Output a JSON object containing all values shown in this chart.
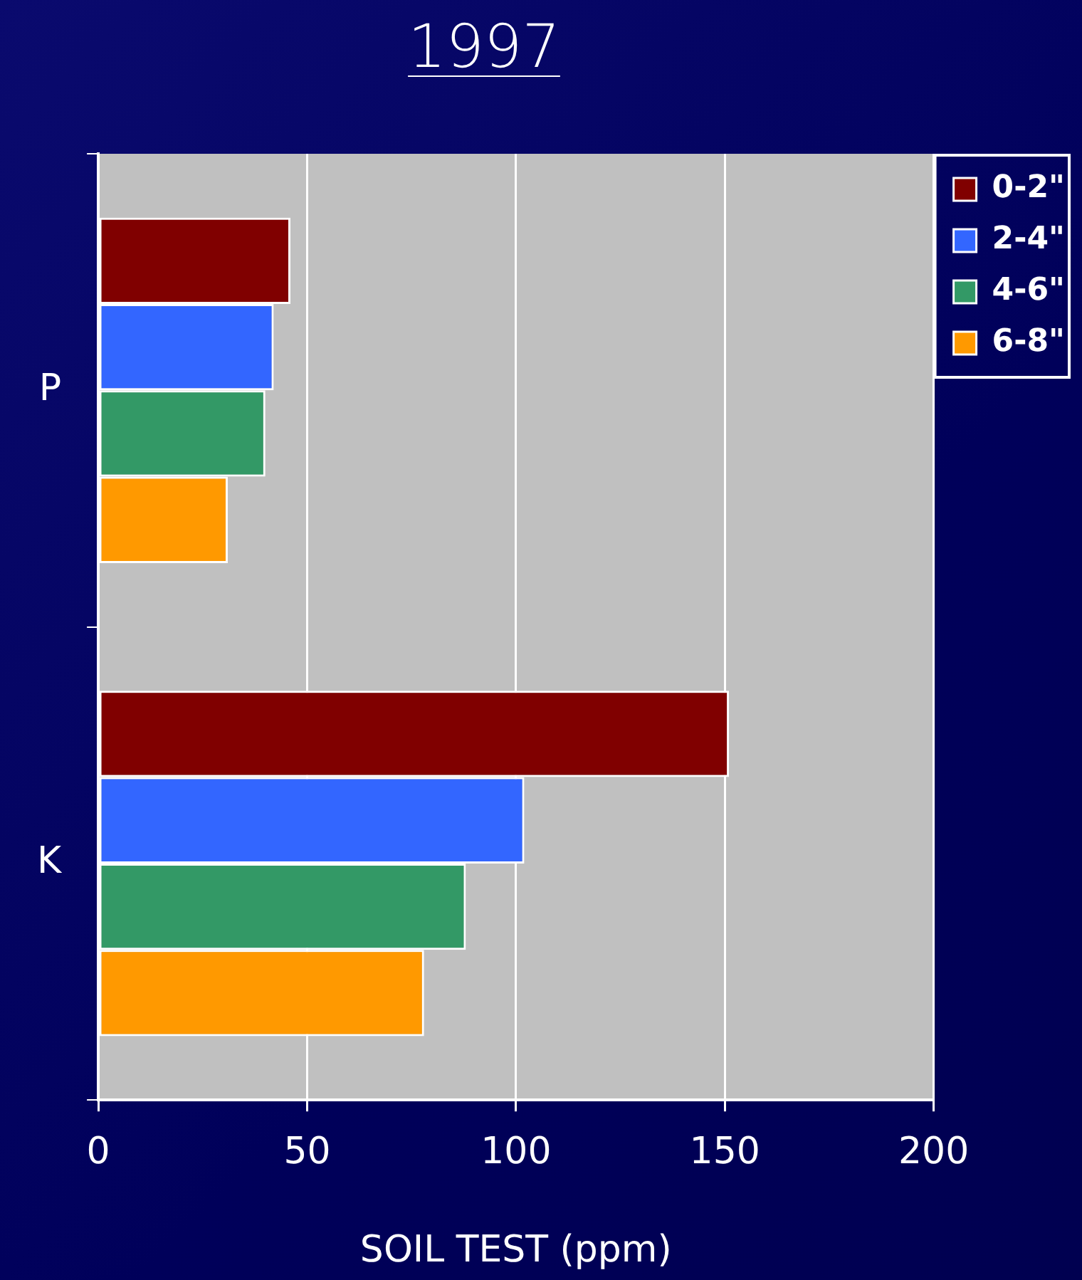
{
  "chart_data": {
    "type": "bar",
    "orientation": "horizontal",
    "title": "1997",
    "xlabel": "SOIL TEST (ppm)",
    "categories": [
      "P",
      "K"
    ],
    "series": [
      {
        "name": "0-2\"",
        "color": "#800000",
        "values": [
          46,
          151
        ]
      },
      {
        "name": "2-4\"",
        "color": "#3366ff",
        "values": [
          42,
          102
        ]
      },
      {
        "name": "4-6\"",
        "color": "#339966",
        "values": [
          40,
          88
        ]
      },
      {
        "name": "6-8\"",
        "color": "#ff9900",
        "values": [
          31,
          78
        ]
      }
    ],
    "xlim": [
      0,
      200
    ],
    "xticks": [
      0,
      50,
      100,
      150,
      200
    ],
    "grid": "x",
    "legend": "top right"
  }
}
